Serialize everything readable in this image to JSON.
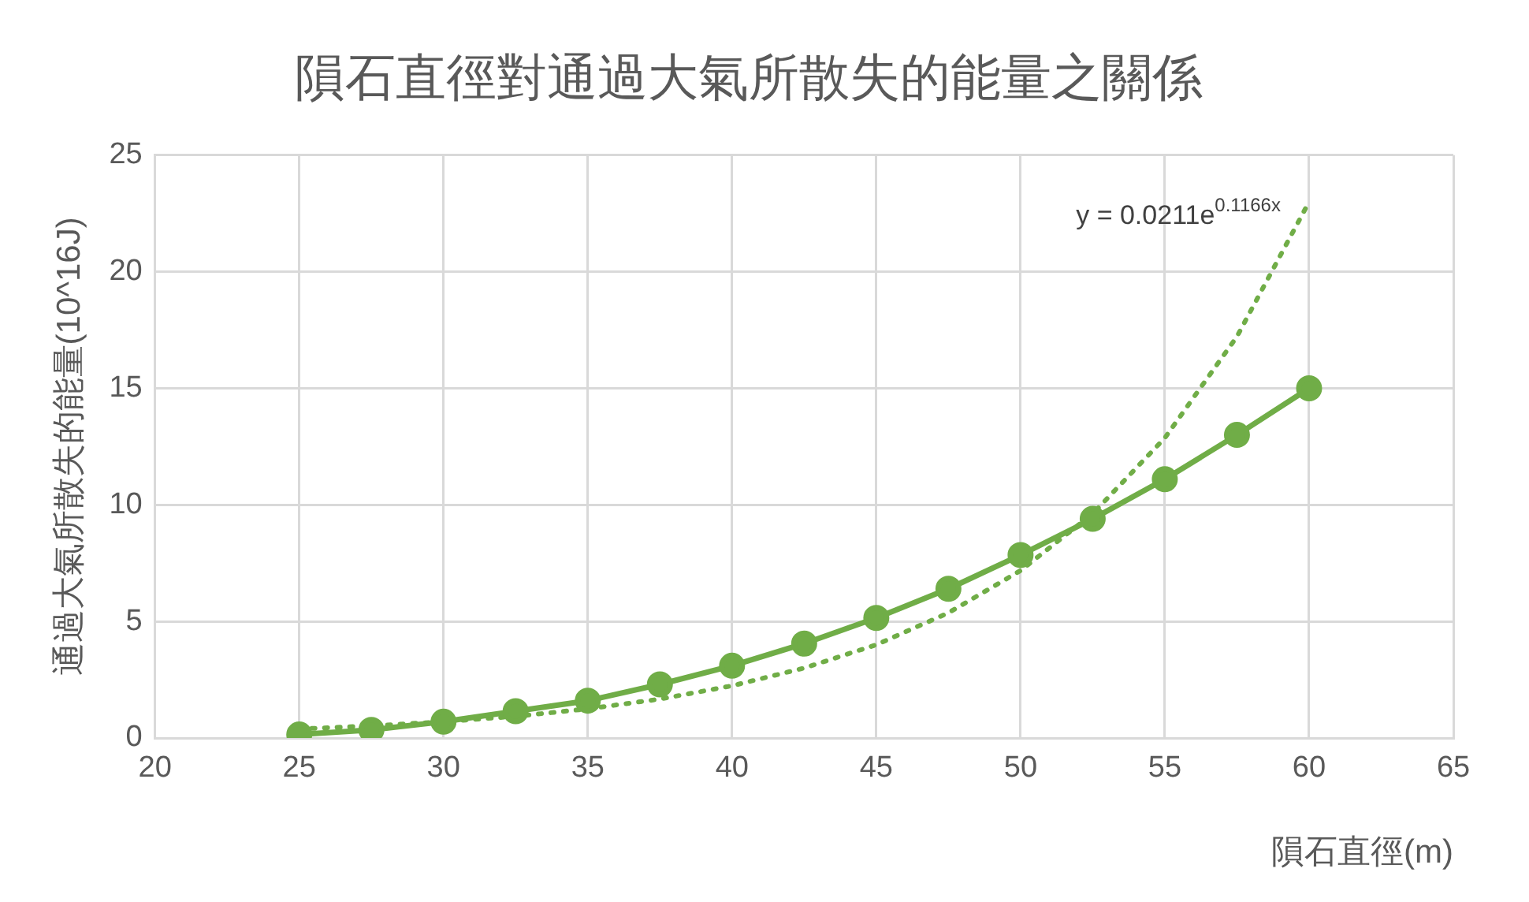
{
  "chart_data": {
    "type": "line",
    "title": "隕石直徑對通過大氣所散失的能量之關係",
    "xlabel": "隕石直徑(m)",
    "ylabel": "通過大氣所散失的能量(10^16J)",
    "x": [
      25,
      27.5,
      30,
      32.5,
      35,
      37.5,
      40,
      42.5,
      45,
      47.5,
      50,
      52.5,
      55,
      57.5,
      60
    ],
    "xlim": [
      20,
      65
    ],
    "xticks": [
      20,
      25,
      30,
      35,
      40,
      45,
      50,
      55,
      60,
      65
    ],
    "ylim": [
      0,
      25
    ],
    "yticks": [
      0,
      5,
      10,
      15,
      20,
      25
    ],
    "grid": true,
    "legend": false,
    "marker": "circle",
    "line_style": "solid",
    "series": [
      {
        "color": "#70ad47",
        "values": [
          0.15,
          0.35,
          0.7,
          1.15,
          1.6,
          2.3,
          3.1,
          4.05,
          5.15,
          6.4,
          7.85,
          9.4,
          11.1,
          13.0,
          15.0
        ]
      },
      {
        "color": "#70ad47",
        "line_style": "dotted",
        "marker": "none",
        "x": [
          25,
          27.5,
          30,
          32.5,
          35,
          37.5,
          40,
          42.5,
          45,
          47.5,
          50,
          52.5,
          55,
          57.5,
          60
        ],
        "values": [
          0.39,
          0.52,
          0.7,
          0.93,
          1.25,
          1.67,
          2.24,
          3.0,
          4.0,
          5.37,
          7.18,
          9.62,
          12.87,
          17.22,
          23.0
        ]
      }
    ],
    "annotations": [
      {
        "text": "y = 0.0211e$^{0.1166x}$",
        "x": 60,
        "y": 23
      }
    ]
  }
}
